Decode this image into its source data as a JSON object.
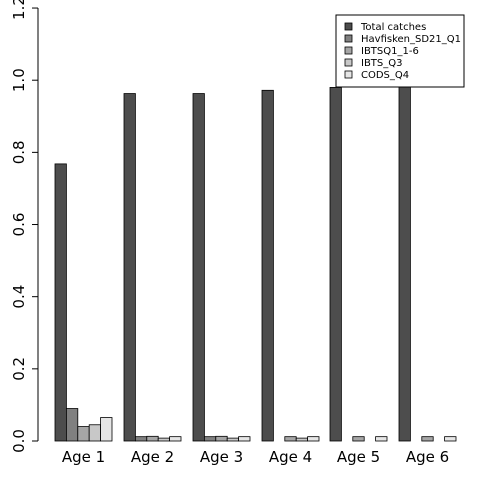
{
  "chart_data": {
    "type": "bar",
    "categories": [
      "Age 1",
      "Age 2",
      "Age 3",
      "Age 4",
      "Age 5",
      "Age 6"
    ],
    "series": [
      {
        "name": "Total catches",
        "color": "#4d4d4d",
        "values": [
          0.768,
          0.963,
          0.963,
          0.972,
          0.98,
          0.985
        ]
      },
      {
        "name": "Havfisken_SD21_Q1",
        "color": "#808080",
        "values": [
          0.09,
          0.012,
          0.012,
          0.0,
          0.0,
          0.0
        ]
      },
      {
        "name": "IBTSQ1_1-6",
        "color": "#a6a6a6",
        "values": [
          0.04,
          0.013,
          0.013,
          0.012,
          0.012,
          0.012
        ]
      },
      {
        "name": "IBTS_Q3",
        "color": "#c8c8c8",
        "values": [
          0.045,
          0.008,
          0.008,
          0.008,
          0.0,
          0.0
        ]
      },
      {
        "name": "CODS_Q4",
        "color": "#e6e6e6",
        "values": [
          0.065,
          0.012,
          0.012,
          0.012,
          0.012,
          0.012
        ]
      }
    ],
    "yticks": [
      "0.0",
      "0.2",
      "0.4",
      "0.6",
      "0.8",
      "1.0",
      "1.2"
    ],
    "ylim": [
      0,
      1.2
    ],
    "legend_position": "top-right",
    "grid": false
  }
}
